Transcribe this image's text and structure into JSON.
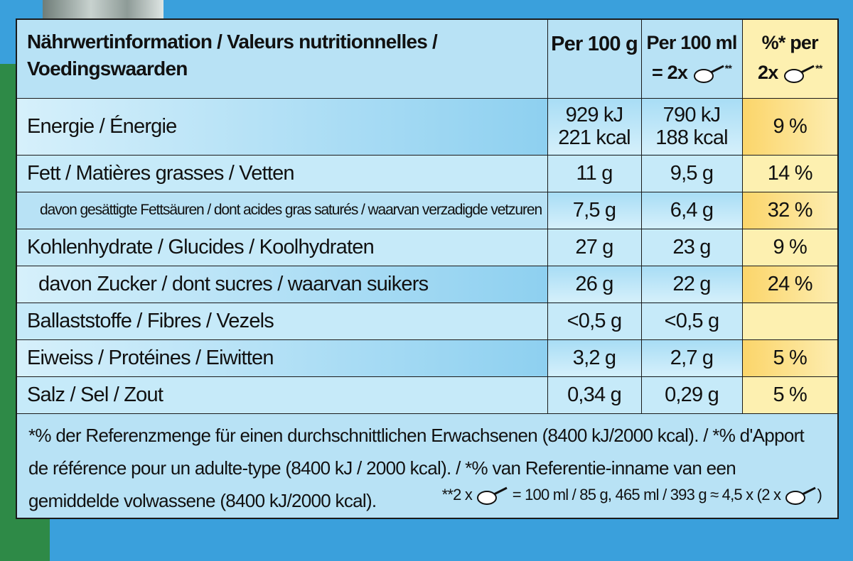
{
  "header": {
    "label": "Nährwertinformation / Valeurs nutritionnelles / Voedingswaarden",
    "col1": "Per 100 g",
    "col2_line1": "Per 100 ml",
    "col2_line2": "= 2x",
    "col3_line1": "%* per",
    "col3_line2": "2x",
    "stars": "**"
  },
  "rows": [
    {
      "label": "Energie / Énergie",
      "v1a": "929 kJ",
      "v1b": "221 kcal",
      "v2a": "790 kJ",
      "v2b": "188 kcal",
      "pct": "9 %"
    },
    {
      "label": "Fett / Matières grasses / Vetten",
      "v1": "11 g",
      "v2": "9,5 g",
      "pct": "14 %"
    },
    {
      "label": "davon gesättigte Fettsäuren / dont acides gras saturés / waarvan verzadigde vetzuren",
      "v1": "7,5 g",
      "v2": "6,4 g",
      "pct": "32 %"
    },
    {
      "label": "Kohlenhydrate / Glucides / Koolhydraten",
      "v1": "27 g",
      "v2": "23 g",
      "pct": "9 %"
    },
    {
      "label": "davon Zucker / dont sucres / waarvan suikers",
      "v1": "26 g",
      "v2": "22 g",
      "pct": "24 %"
    },
    {
      "label": "Ballaststoffe / Fibres / Vezels",
      "v1": "<0,5 g",
      "v2": "<0,5 g",
      "pct": ""
    },
    {
      "label": "Eiweiss / Protéines / Eiwitten",
      "v1": "3,2 g",
      "v2": "2,7 g",
      "pct": "5 %"
    },
    {
      "label": "Salz / Sel / Zout",
      "v1": "0,34 g",
      "v2": "0,29 g",
      "pct": "5 %"
    }
  ],
  "footnote": {
    "text": "*% der Referenzmenge für einen durchschnittlichen Erwachsenen (8400 kJ/2000 kcal). / *% d'Apport de référence pour un adulte-type (8400 kJ / 2000 kcal). / *% van Referentie-inname van een gemiddelde volwassene (8400 kJ/2000 kcal).",
    "serving_prefix": "**2 x",
    "serving_text": "= 100 ml / 85 g, 465 ml / 393 g ≈ 4,5 x (2 x",
    "serving_suffix": ")"
  }
}
